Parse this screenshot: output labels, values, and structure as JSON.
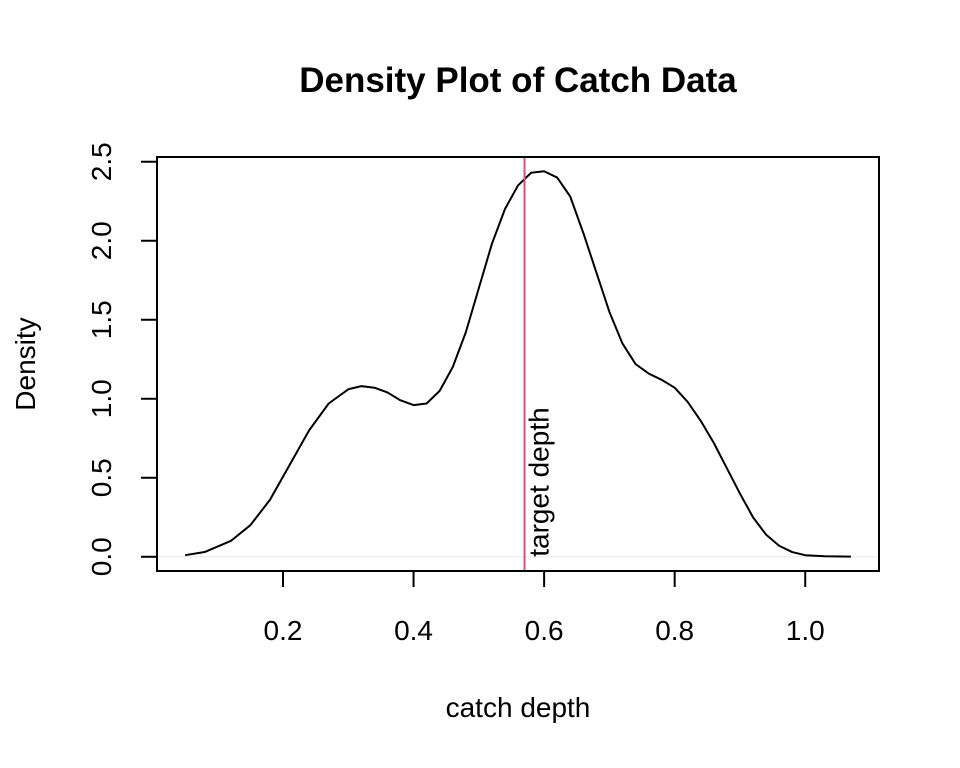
{
  "chart_data": {
    "type": "line",
    "title": "Density Plot of Catch Data",
    "xlabel": "catch depth",
    "ylabel": "Density",
    "xlim": [
      0.007,
      1.113
    ],
    "ylim": [
      -0.09,
      2.53
    ],
    "x_ticks": [
      0.2,
      0.4,
      0.6,
      0.8,
      1.0
    ],
    "x_tick_labels": [
      "0.2",
      "0.4",
      "0.6",
      "0.8",
      "1.0"
    ],
    "y_ticks": [
      0.0,
      0.5,
      1.0,
      1.5,
      2.0,
      2.5
    ],
    "y_tick_labels": [
      "0.0",
      "0.5",
      "1.0",
      "1.5",
      "2.0",
      "2.5"
    ],
    "grid": false,
    "series": [
      {
        "color": "#000000",
        "x": [
          0.05,
          0.08,
          0.12,
          0.15,
          0.18,
          0.21,
          0.24,
          0.27,
          0.3,
          0.32,
          0.34,
          0.36,
          0.38,
          0.4,
          0.42,
          0.44,
          0.46,
          0.48,
          0.5,
          0.52,
          0.54,
          0.56,
          0.58,
          0.6,
          0.62,
          0.64,
          0.66,
          0.68,
          0.7,
          0.72,
          0.74,
          0.76,
          0.78,
          0.8,
          0.82,
          0.84,
          0.86,
          0.88,
          0.9,
          0.92,
          0.94,
          0.96,
          0.98,
          1.0,
          1.03,
          1.07
        ],
        "y": [
          0.01,
          0.03,
          0.1,
          0.2,
          0.36,
          0.58,
          0.8,
          0.97,
          1.06,
          1.08,
          1.07,
          1.04,
          0.99,
          0.96,
          0.97,
          1.05,
          1.2,
          1.42,
          1.7,
          1.98,
          2.2,
          2.35,
          2.43,
          2.44,
          2.4,
          2.28,
          2.05,
          1.8,
          1.55,
          1.35,
          1.22,
          1.16,
          1.12,
          1.07,
          0.98,
          0.86,
          0.72,
          0.56,
          0.4,
          0.25,
          0.14,
          0.07,
          0.03,
          0.01,
          0.003,
          0.001
        ]
      }
    ],
    "reference_lines": [
      {
        "orientation": "vertical",
        "x": 0.57,
        "color": "#d94e73",
        "label": "target depth"
      }
    ],
    "baseline": {
      "y": 0.0,
      "color": "#e8e8e8"
    }
  }
}
